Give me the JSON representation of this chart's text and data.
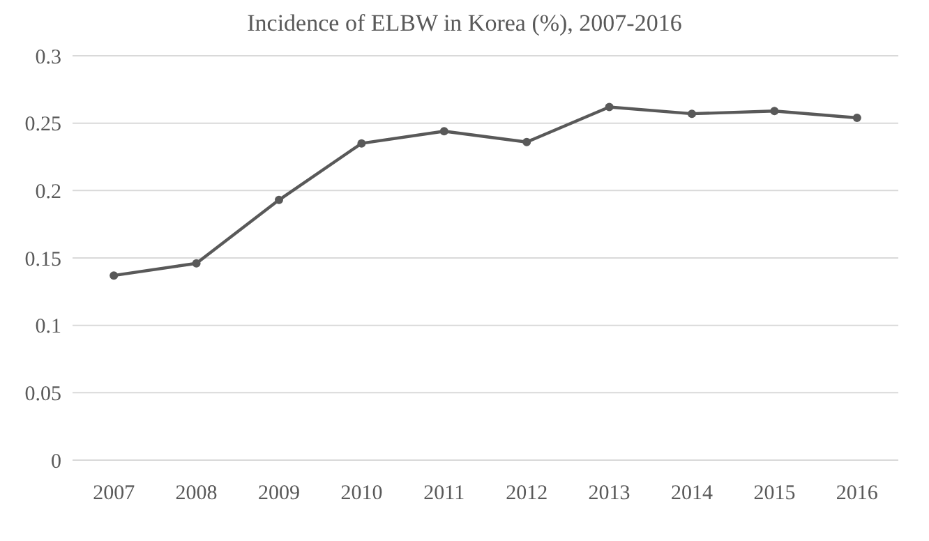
{
  "chart_data": {
    "type": "line",
    "title": "Incidence of ELBW in Korea (%), 2007-2016",
    "categories": [
      "2007",
      "2008",
      "2009",
      "2010",
      "2011",
      "2012",
      "2013",
      "2014",
      "2015",
      "2016"
    ],
    "series": [
      {
        "color": "#595959",
        "values": [
          0.137,
          0.146,
          0.193,
          0.235,
          0.244,
          0.236,
          0.262,
          0.257,
          0.259,
          0.254
        ]
      }
    ],
    "ylim": [
      0,
      0.3
    ],
    "yticks": [
      0,
      0.05,
      0.1,
      0.15,
      0.2,
      0.25,
      0.3
    ],
    "grid": "y",
    "marker": "circle",
    "line_style": "solid"
  }
}
